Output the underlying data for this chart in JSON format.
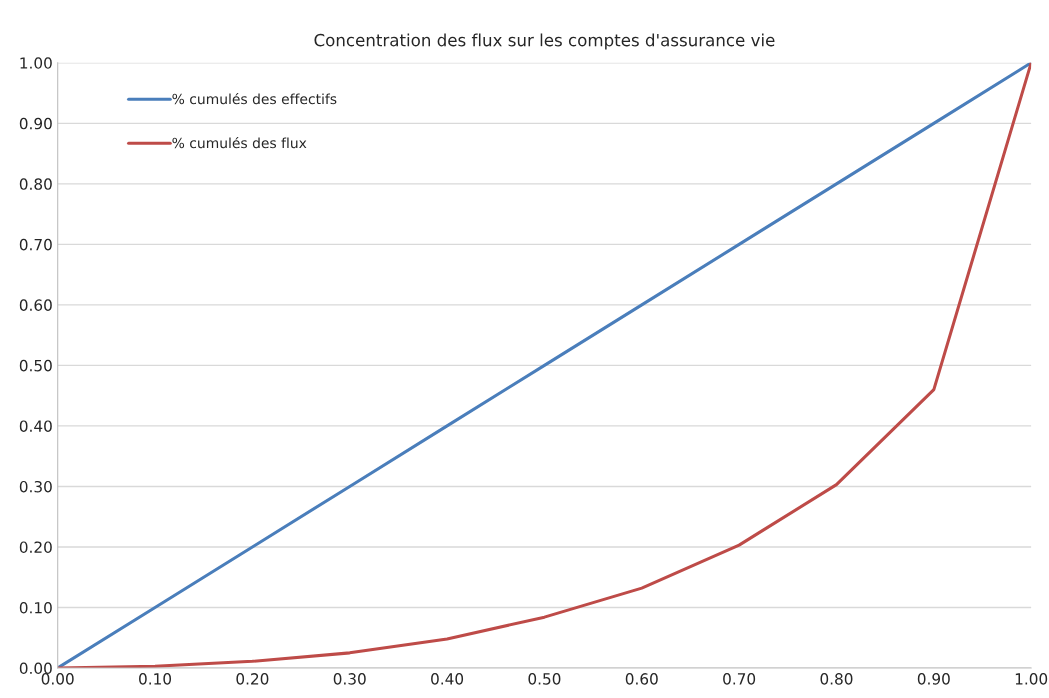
{
  "chart_data": {
    "type": "line",
    "title": "Concentration des flux sur les comptes d'assurance vie",
    "x": [
      0.0,
      0.1,
      0.2,
      0.3,
      0.4,
      0.5,
      0.6,
      0.7,
      0.8,
      0.9,
      1.0
    ],
    "series": [
      {
        "name": "% cumulés des effectifs",
        "color": "#4a7ebb",
        "values": [
          0.0,
          0.1,
          0.2,
          0.3,
          0.4,
          0.5,
          0.6,
          0.7,
          0.8,
          0.9,
          1.0
        ]
      },
      {
        "name": "% cumulés des flux",
        "color": "#be4b48",
        "values": [
          0.0,
          0.003,
          0.011,
          0.025,
          0.048,
          0.084,
          0.132,
          0.203,
          0.303,
          0.46,
          1.0
        ]
      }
    ],
    "xlim": [
      0,
      1
    ],
    "ylim": [
      0,
      1
    ],
    "xticks": [
      {
        "value": 0,
        "label": "0.00"
      },
      {
        "value": 0.1,
        "label": "0.10"
      },
      {
        "value": 0.2,
        "label": "0.20"
      },
      {
        "value": 0.3,
        "label": "0.30"
      },
      {
        "value": 0.4,
        "label": "0.40"
      },
      {
        "value": 0.5,
        "label": "0.50"
      },
      {
        "value": 0.6,
        "label": "0.60"
      },
      {
        "value": 0.7,
        "label": "0.70"
      },
      {
        "value": 0.8,
        "label": "0.80"
      },
      {
        "value": 0.9,
        "label": "0.90"
      },
      {
        "value": 1,
        "label": "1.00"
      }
    ],
    "yticks": [
      {
        "value": 0,
        "label": "0.00"
      },
      {
        "value": 0.1,
        "label": "0.10"
      },
      {
        "value": 0.2,
        "label": "0.20"
      },
      {
        "value": 0.3,
        "label": "0.30"
      },
      {
        "value": 0.4,
        "label": "0.40"
      },
      {
        "value": 0.5,
        "label": "0.50"
      },
      {
        "value": 0.6,
        "label": "0.60"
      },
      {
        "value": 0.7,
        "label": "0.70"
      },
      {
        "value": 0.8,
        "label": "0.80"
      },
      {
        "value": 0.9,
        "label": "0.90"
      },
      {
        "value": 1,
        "label": "1.00"
      }
    ],
    "grid": "y",
    "legend": "top left",
    "marker": "none",
    "line_style": "solid"
  }
}
